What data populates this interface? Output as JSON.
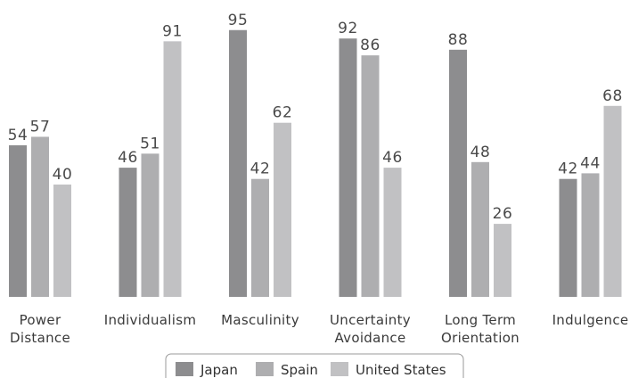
{
  "chart_data": {
    "type": "bar",
    "categories": [
      [
        "Power",
        "Distance"
      ],
      [
        "Individualism"
      ],
      [
        "Masculinity"
      ],
      [
        "Uncertainty",
        "Avoidance"
      ],
      [
        "Long Term",
        "Orientation"
      ],
      [
        "Indulgence"
      ]
    ],
    "series": [
      {
        "name": "Japan",
        "color": "#8d8d8f",
        "values": [
          54,
          46,
          95,
          92,
          88,
          42
        ]
      },
      {
        "name": "Spain",
        "color": "#aeaeb0",
        "values": [
          57,
          51,
          42,
          86,
          48,
          44
        ]
      },
      {
        "name": "United States",
        "color": "#c1c1c3",
        "values": [
          40,
          91,
          62,
          46,
          26,
          68
        ]
      }
    ],
    "title": "",
    "xlabel": "",
    "ylabel": "",
    "ylim": [
      0,
      100
    ],
    "grid": false,
    "legend": "bottom-center"
  }
}
